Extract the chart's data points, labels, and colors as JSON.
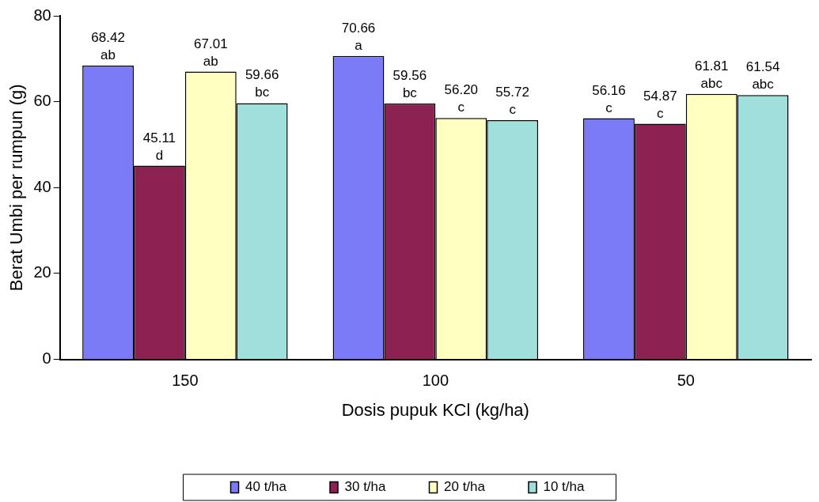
{
  "chart_data": {
    "type": "bar",
    "xlabel": "Dosis pupuk KCl (kg/ha)",
    "ylabel": "Berat Umbi per rumpun (g)",
    "categories": [
      "150",
      "100",
      "50"
    ],
    "series": [
      {
        "name": "40 t/ha",
        "color": "#7b7bf7",
        "values": [
          68.42,
          70.66,
          56.16
        ],
        "value_labels": [
          "68.42\nab",
          "70.66\na",
          "56.16\nc"
        ]
      },
      {
        "name": "30 t/ha",
        "color": "#8b2252",
        "values": [
          45.11,
          59.56,
          54.87
        ],
        "value_labels": [
          "45.11\nd",
          "59.56\nbc",
          "54.87\nc"
        ]
      },
      {
        "name": "20 t/ha",
        "color": "#ffffc0",
        "values": [
          67.01,
          56.2,
          61.81
        ],
        "value_labels": [
          "67.01\nab",
          "56.20\nc",
          "61.81\nabc"
        ]
      },
      {
        "name": "10 t/ha",
        "color": "#a0e0dc",
        "values": [
          59.66,
          55.72,
          61.54
        ],
        "value_labels": [
          "59.66\nbc",
          "55.72\nc",
          "61.54\nabc"
        ]
      }
    ],
    "ylim": [
      0,
      80
    ],
    "yticks": [
      0,
      20,
      40,
      60,
      80
    ],
    "grid": false,
    "legend": "bottom"
  }
}
